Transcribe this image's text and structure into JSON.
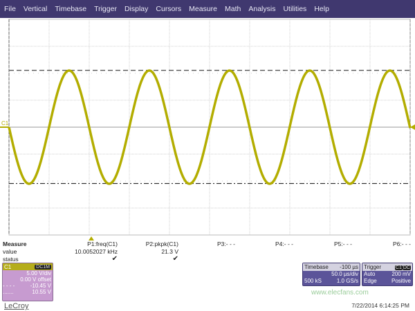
{
  "menu": [
    "File",
    "Vertical",
    "Timebase",
    "Trigger",
    "Display",
    "Cursors",
    "Measure",
    "Math",
    "Analysis",
    "Utilities",
    "Help"
  ],
  "colors": {
    "menubar": "#40386f",
    "trace": "#b3ad00",
    "grid": "#cfcfcf"
  },
  "channel_marker": "C1",
  "measure": {
    "title": "Measure",
    "row_value": "value",
    "row_status": "status",
    "params": [
      {
        "name": "P1:freq(C1)",
        "value": "10.0052027 kHz",
        "status": "✔"
      },
      {
        "name": "P2:pkpk(C1)",
        "value": "21.3 V",
        "status": "✔"
      },
      {
        "name": "P3:- - -"
      },
      {
        "name": "P4:- - -"
      },
      {
        "name": "P5:- - -"
      },
      {
        "name": "P6:- - -"
      }
    ]
  },
  "c1": {
    "label": "C1",
    "coupling": "DC1M",
    "vdiv": "5.00 V/div",
    "offset": "0.00 V offset",
    "cursor1": "-10.45 V",
    "cursor2": "10.55 V"
  },
  "timebase": {
    "label": "Timebase",
    "delay": "-100 µs",
    "tdiv": "50.0 µs/div",
    "samples": "500 kS",
    "rate": "1.0 GS/s"
  },
  "trigger": {
    "label": "Trigger",
    "src": "C1",
    "coupling": "DC",
    "mode": "Auto",
    "level": "200 mV",
    "type": "Edge",
    "slope": "Positive"
  },
  "brand": "LeCroy",
  "datetime": "7/22/2014 6:14:25 PM",
  "watermark": "www.elecfans.com",
  "waveform": {
    "frequency_khz": 10.0052027,
    "amplitude_v": 10.5,
    "cursor_top_v": 10.55,
    "cursor_bottom_v": -10.45,
    "volts_per_div": 5,
    "time_per_div_us": 50,
    "divisions_x": 10,
    "divisions_y": 8
  }
}
